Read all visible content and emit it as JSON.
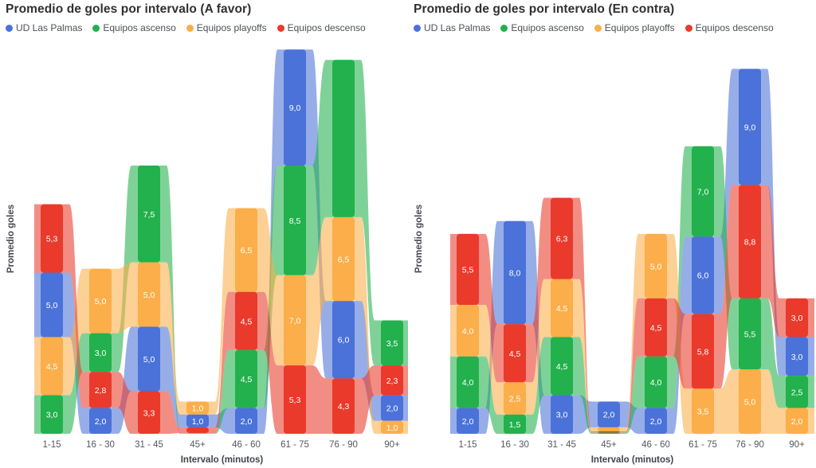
{
  "page": {
    "background": "#ffffff"
  },
  "theme": {
    "title_color": "#2f3033",
    "legend_text_color": "#4c5055",
    "axis_text_color": "#53575d",
    "value_label_color": "#ffffff"
  },
  "chart_data": [
    {
      "id": "a-favor",
      "type": "area",
      "variant": "stacked-stream-columns-sorted-ascending",
      "title": "Promedio de goles por intervalo (A favor)",
      "xlabel": "Intervalo (minutos)",
      "ylabel": "Promedio goles",
      "ylim": [
        0,
        30
      ],
      "grid": false,
      "legend_position": "top",
      "categories": [
        "1-15",
        "16 - 30",
        "31 - 45",
        "45+",
        "46 - 60",
        "61 - 75",
        "76 - 90",
        "90+"
      ],
      "series": [
        {
          "name": "UD Las Palmas",
          "color": "#4A72D8",
          "values": [
            5.0,
            2.0,
            5.0,
            1.0,
            2.0,
            9.0,
            6.0,
            2.0
          ],
          "labels": [
            "5,0",
            "2,0",
            "5,0",
            "1,0",
            "2,0",
            "9,0",
            "6,0",
            "2,0"
          ]
        },
        {
          "name": "Equipos ascenso",
          "color": "#22B14C",
          "values": [
            3.0,
            3.0,
            7.5,
            0.05,
            4.5,
            8.5,
            12.2,
            3.5
          ],
          "labels": [
            "3,0",
            "3,0",
            "7,5",
            "",
            "4,5",
            "8,5",
            "",
            "3,5"
          ]
        },
        {
          "name": "Equipos playoffs",
          "color": "#FBAE49",
          "values": [
            4.5,
            5.0,
            5.0,
            1.0,
            6.5,
            7.0,
            6.5,
            1.0
          ],
          "labels": [
            "4,5",
            "5,0",
            "5,0",
            "1,0",
            "6,5",
            "7,0",
            "6,5",
            "1,0"
          ]
        },
        {
          "name": "Equipos descenso",
          "color": "#E93A2B",
          "values": [
            5.3,
            2.8,
            3.3,
            0.45,
            4.5,
            5.3,
            4.3,
            2.3
          ],
          "labels": [
            "5,3",
            "2,8",
            "3,3",
            "",
            "4,5",
            "5,3",
            "4,3",
            "2,3"
          ]
        }
      ]
    },
    {
      "id": "en-contra",
      "type": "area",
      "variant": "stacked-stream-columns-sorted-ascending",
      "title": "Promedio de goles por intervalo (En contra)",
      "xlabel": "Intervalo (minutos)",
      "ylabel": "Promedio goles",
      "ylim": [
        0,
        30
      ],
      "grid": false,
      "legend_position": "top",
      "categories": [
        "1-15",
        "16 - 30",
        "31 - 45",
        "45+",
        "46 - 60",
        "61 - 75",
        "76 - 90",
        "90+"
      ],
      "series": [
        {
          "name": "UD Las Palmas",
          "color": "#4A72D8",
          "values": [
            2.0,
            8.0,
            3.0,
            2.0,
            2.0,
            6.0,
            9.0,
            3.0
          ],
          "labels": [
            "2,0",
            "8,0",
            "3,0",
            "2,0",
            "2,0",
            "6,0",
            "9,0",
            "3,0"
          ]
        },
        {
          "name": "Equipos ascenso",
          "color": "#22B14C",
          "values": [
            4.0,
            1.5,
            4.5,
            0.1,
            4.0,
            7.0,
            5.5,
            2.5
          ],
          "labels": [
            "4,0",
            "1,5",
            "4,5",
            "",
            "4,0",
            "7,0",
            "5,5",
            "2,5"
          ]
        },
        {
          "name": "Equipos playoffs",
          "color": "#FBAE49",
          "values": [
            4.0,
            2.5,
            4.5,
            0.3,
            5.0,
            3.5,
            5.0,
            2.0
          ],
          "labels": [
            "4,0",
            "2,5",
            "4,5",
            "",
            "5,0",
            "3,5",
            "5,0",
            "2,0"
          ]
        },
        {
          "name": "Equipos descenso",
          "color": "#E93A2B",
          "values": [
            5.5,
            4.5,
            6.3,
            0.1,
            4.5,
            5.8,
            8.8,
            3.0
          ],
          "labels": [
            "5,5",
            "4,5",
            "6,3",
            "",
            "4,5",
            "5,8",
            "8,8",
            "3,0"
          ]
        }
      ]
    }
  ]
}
